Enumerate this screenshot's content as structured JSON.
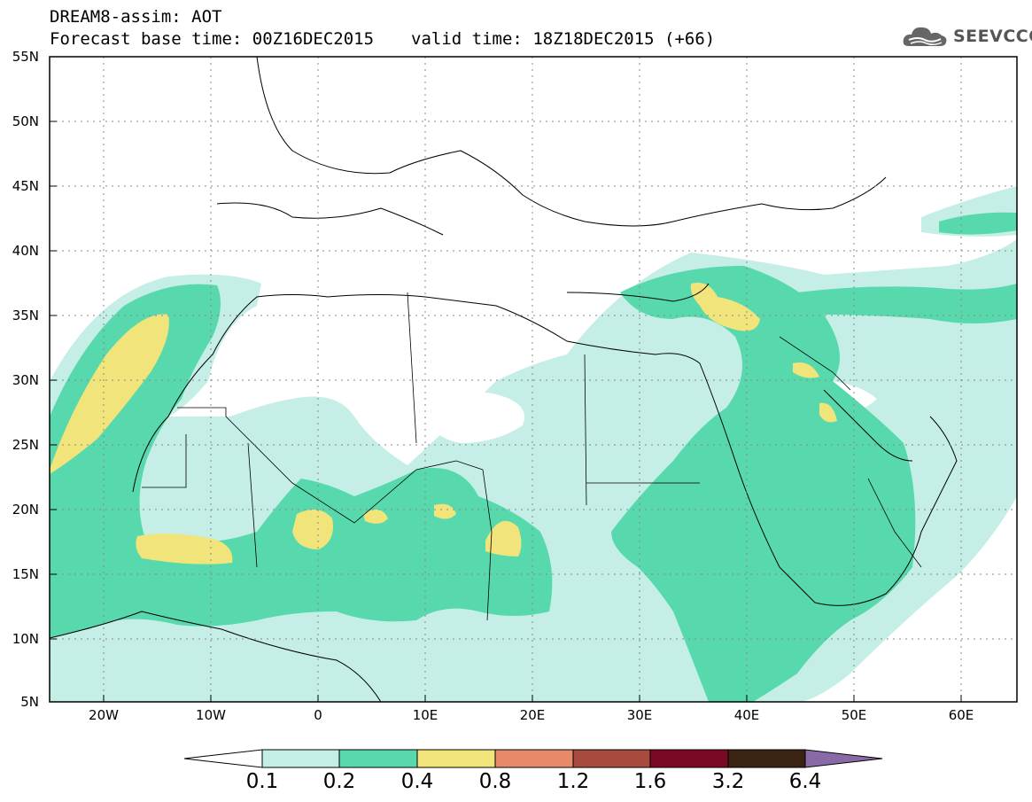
{
  "title": {
    "line1": "DREAM8-assim: AOT",
    "base": "Forecast base time: 00Z16DEC2015",
    "valid": "valid time: 18Z18DEC2015 (+66)"
  },
  "logo": {
    "text": "SEEVCCC",
    "icon": "cloud-logo-icon"
  },
  "map": {
    "lat_labels": [
      "55N",
      "50N",
      "45N",
      "40N",
      "35N",
      "30N",
      "25N",
      "20N",
      "15N",
      "10N",
      "5N"
    ],
    "lon_labels": [
      "20W",
      "10W",
      "0",
      "10E",
      "20E",
      "30E",
      "40E",
      "50E",
      "60E"
    ],
    "lon_range": [
      -25,
      65
    ],
    "lat_range": [
      5,
      55
    ]
  },
  "colorbar": {
    "labels": [
      "0.1",
      "0.2",
      "0.4",
      "0.8",
      "1.2",
      "1.6",
      "3.2",
      "6.4"
    ],
    "colors": [
      "#ffffff",
      "#c4eee6",
      "#57d9ad",
      "#f1e47a",
      "#e8896a",
      "#a84a3e",
      "#7a0a24",
      "#3b2314",
      "#8a6aa6"
    ]
  }
}
